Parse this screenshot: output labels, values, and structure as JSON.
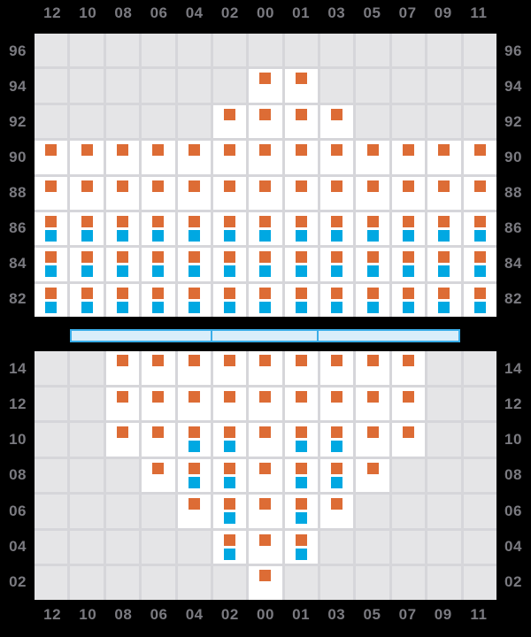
{
  "colors": {
    "background": "#000000",
    "cell_empty": "#e5e5e7",
    "cell_active": "#ffffff",
    "grid_line": "#d6d6da",
    "marker_orange": "#dd6c35",
    "marker_blue": "#00a8e2",
    "bar_fill": "#d9eefa",
    "bar_border": "#3aade8",
    "axis_label": "#7a7a80"
  },
  "columns": [
    "12",
    "10",
    "08",
    "06",
    "04",
    "02",
    "00",
    "01",
    "03",
    "05",
    "07",
    "09",
    "11"
  ],
  "chart_data": [
    {
      "type": "heatmap",
      "panel": "top",
      "x_tick_labels_position": "top",
      "y_tick_labels_position": "both-sides",
      "grid": true,
      "columns": [
        "12",
        "10",
        "08",
        "06",
        "04",
        "02",
        "00",
        "01",
        "03",
        "05",
        "07",
        "09",
        "11"
      ],
      "rows": [
        {
          "label": "96",
          "active": [],
          "orange": [],
          "blue": []
        },
        {
          "label": "94",
          "active": [
            "00",
            "01"
          ],
          "orange": [
            "00",
            "01"
          ],
          "blue": []
        },
        {
          "label": "92",
          "active": [
            "02",
            "00",
            "01",
            "03"
          ],
          "orange": [
            "02",
            "00",
            "01",
            "03"
          ],
          "blue": []
        },
        {
          "label": "90",
          "active": [
            "12",
            "10",
            "08",
            "06",
            "04",
            "02",
            "00",
            "01",
            "03",
            "05",
            "07",
            "09",
            "11"
          ],
          "orange": [
            "12",
            "10",
            "08",
            "06",
            "04",
            "02",
            "00",
            "01",
            "03",
            "05",
            "07",
            "09",
            "11"
          ],
          "blue": []
        },
        {
          "label": "88",
          "active": [
            "12",
            "10",
            "08",
            "06",
            "04",
            "02",
            "00",
            "01",
            "03",
            "05",
            "07",
            "09",
            "11"
          ],
          "orange": [
            "12",
            "10",
            "08",
            "06",
            "04",
            "02",
            "00",
            "01",
            "03",
            "05",
            "07",
            "09",
            "11"
          ],
          "blue": []
        },
        {
          "label": "86",
          "active": [
            "12",
            "10",
            "08",
            "06",
            "04",
            "02",
            "00",
            "01",
            "03",
            "05",
            "07",
            "09",
            "11"
          ],
          "orange": [
            "12",
            "10",
            "08",
            "06",
            "04",
            "02",
            "00",
            "01",
            "03",
            "05",
            "07",
            "09",
            "11"
          ],
          "blue": [
            "12",
            "10",
            "08",
            "06",
            "04",
            "02",
            "00",
            "01",
            "03",
            "05",
            "07",
            "09",
            "11"
          ]
        },
        {
          "label": "84",
          "active": [
            "12",
            "10",
            "08",
            "06",
            "04",
            "02",
            "00",
            "01",
            "03",
            "05",
            "07",
            "09",
            "11"
          ],
          "orange": [
            "12",
            "10",
            "08",
            "06",
            "04",
            "02",
            "00",
            "01",
            "03",
            "05",
            "07",
            "09",
            "11"
          ],
          "blue": [
            "12",
            "10",
            "08",
            "06",
            "04",
            "02",
            "00",
            "01",
            "03",
            "05",
            "07",
            "09",
            "11"
          ]
        },
        {
          "label": "82",
          "active": [
            "12",
            "10",
            "08",
            "06",
            "04",
            "02",
            "00",
            "01",
            "03",
            "05",
            "07",
            "09",
            "11"
          ],
          "orange": [
            "12",
            "10",
            "08",
            "06",
            "04",
            "02",
            "00",
            "01",
            "03",
            "05",
            "07",
            "09",
            "11"
          ],
          "blue": [
            "12",
            "10",
            "08",
            "06",
            "04",
            "02",
            "00",
            "01",
            "03",
            "05",
            "07",
            "09",
            "11"
          ]
        }
      ]
    },
    {
      "type": "heatmap",
      "panel": "bottom",
      "x_tick_labels_position": "bottom",
      "y_tick_labels_position": "both-sides",
      "grid": true,
      "columns": [
        "12",
        "10",
        "08",
        "06",
        "04",
        "02",
        "00",
        "01",
        "03",
        "05",
        "07",
        "09",
        "11"
      ],
      "rows": [
        {
          "label": "14",
          "active": [
            "08",
            "06",
            "04",
            "02",
            "00",
            "01",
            "03",
            "05",
            "07"
          ],
          "orange": [
            "08",
            "06",
            "04",
            "02",
            "00",
            "01",
            "03",
            "05",
            "07"
          ],
          "blue": []
        },
        {
          "label": "12",
          "active": [
            "08",
            "06",
            "04",
            "02",
            "00",
            "01",
            "03",
            "05",
            "07"
          ],
          "orange": [
            "08",
            "06",
            "04",
            "02",
            "00",
            "01",
            "03",
            "05",
            "07"
          ],
          "blue": []
        },
        {
          "label": "10",
          "active": [
            "08",
            "06",
            "04",
            "02",
            "00",
            "01",
            "03",
            "05",
            "07"
          ],
          "orange": [
            "08",
            "06",
            "04",
            "02",
            "00",
            "01",
            "03",
            "05",
            "07"
          ],
          "blue": [
            "04",
            "02",
            "01",
            "03"
          ]
        },
        {
          "label": "08",
          "active": [
            "06",
            "04",
            "02",
            "00",
            "01",
            "03",
            "05"
          ],
          "orange": [
            "06",
            "04",
            "02",
            "00",
            "01",
            "03",
            "05"
          ],
          "blue": [
            "04",
            "02",
            "01",
            "03"
          ]
        },
        {
          "label": "06",
          "active": [
            "04",
            "02",
            "00",
            "01",
            "03"
          ],
          "orange": [
            "04",
            "02",
            "00",
            "01",
            "03"
          ],
          "blue": [
            "02",
            "01"
          ]
        },
        {
          "label": "04",
          "active": [
            "02",
            "00",
            "01"
          ],
          "orange": [
            "02",
            "00",
            "01"
          ],
          "blue": [
            "02",
            "01"
          ]
        },
        {
          "label": "02",
          "active": [
            "00"
          ],
          "orange": [
            "00"
          ],
          "blue": []
        }
      ]
    }
  ],
  "navigator": {
    "segments": [
      {
        "columns": [
          "10",
          "08",
          "06",
          "04"
        ]
      },
      {
        "columns": [
          "02",
          "00",
          "01"
        ]
      },
      {
        "columns": [
          "03",
          "05",
          "07",
          "09"
        ]
      }
    ]
  }
}
